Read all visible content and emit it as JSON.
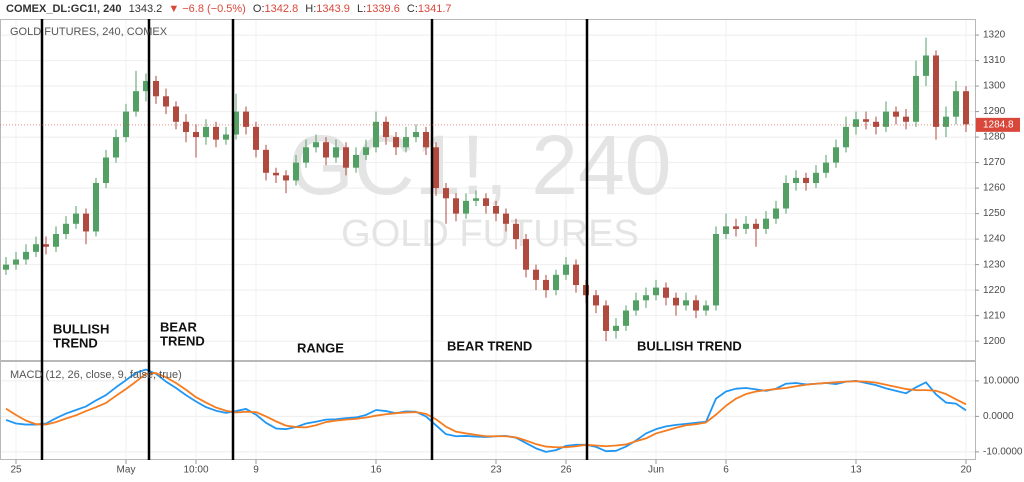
{
  "header": {
    "symbol": "COMEX_DL:GC1!, 240",
    "last": "1343.2",
    "change": "▼ −6.8 (−0.5%)",
    "ohlc": [
      {
        "label": "O:",
        "value": "1342.8"
      },
      {
        "label": "H:",
        "value": "1343.9"
      },
      {
        "label": "L:",
        "value": "1339.6"
      },
      {
        "label": "C:",
        "value": "1341.7"
      }
    ]
  },
  "watermark": {
    "big": "GC1!, 240",
    "small": "GOLD FUTURES"
  },
  "chart_data": [
    {
      "type": "candlestick",
      "title": "GOLD FUTURES, 240, COMEX",
      "up_color": "#53a065",
      "down_color": "#b04a3f",
      "open": [
        1228,
        1230,
        1232,
        1235,
        1238,
        1237,
        1242,
        1246,
        1250,
        1243,
        1262,
        1272,
        1280,
        1290,
        1298,
        1302,
        1296,
        1292,
        1286,
        1282,
        1280,
        1284,
        1279,
        1281,
        1290,
        1284,
        1275,
        1266,
        1265,
        1263,
        1270,
        1276,
        1278,
        1272,
        1276,
        1268,
        1273,
        1276,
        1286,
        1280,
        1276,
        1280,
        1282,
        1276,
        1260,
        1256,
        1250,
        1255,
        1256,
        1253,
        1250,
        1246,
        1240,
        1228,
        1224,
        1220,
        1226,
        1230,
        1222,
        1218,
        1214,
        1204,
        1206,
        1212,
        1216,
        1218,
        1221,
        1217,
        1214,
        1216,
        1212,
        1214,
        1242,
        1245,
        1244,
        1246,
        1244,
        1248,
        1252,
        1262,
        1264,
        1262,
        1266,
        1270,
        1276,
        1284,
        1287,
        1286,
        1284,
        1290,
        1288,
        1286,
        1304,
        1312,
        1284,
        1288,
        1298
      ],
      "high": [
        1233,
        1235,
        1238,
        1241,
        1241,
        1245,
        1249,
        1253,
        1252,
        1264,
        1275,
        1283,
        1293,
        1306,
        1305,
        1304,
        1299,
        1294,
        1289,
        1285,
        1287,
        1286,
        1284,
        1297,
        1292,
        1286,
        1277,
        1268,
        1267,
        1273,
        1279,
        1281,
        1280,
        1279,
        1278,
        1276,
        1279,
        1290,
        1288,
        1282,
        1284,
        1285,
        1284,
        1278,
        1262,
        1258,
        1258,
        1259,
        1258,
        1255,
        1252,
        1248,
        1242,
        1230,
        1226,
        1228,
        1233,
        1232,
        1224,
        1220,
        1216,
        1209,
        1214,
        1219,
        1221,
        1224,
        1223,
        1219,
        1219,
        1218,
        1216,
        1245,
        1250,
        1248,
        1249,
        1248,
        1251,
        1255,
        1265,
        1267,
        1266,
        1269,
        1273,
        1279,
        1288,
        1290,
        1290,
        1288,
        1294,
        1292,
        1291,
        1310,
        1319,
        1314,
        1292,
        1302,
        1300
      ],
      "low": [
        1226,
        1228,
        1230,
        1233,
        1234,
        1235,
        1240,
        1244,
        1238,
        1241,
        1260,
        1270,
        1278,
        1288,
        1294,
        1293,
        1289,
        1283,
        1278,
        1272,
        1277,
        1276,
        1277,
        1279,
        1281,
        1272,
        1263,
        1262,
        1258,
        1261,
        1268,
        1274,
        1269,
        1270,
        1265,
        1266,
        1271,
        1274,
        1277,
        1273,
        1274,
        1278,
        1273,
        1257,
        1246,
        1247,
        1248,
        1253,
        1250,
        1247,
        1243,
        1236,
        1225,
        1220,
        1217,
        1218,
        1224,
        1219,
        1215,
        1211,
        1200,
        1201,
        1204,
        1210,
        1213,
        1216,
        1214,
        1210,
        1212,
        1209,
        1210,
        1212,
        1240,
        1241,
        1242,
        1237,
        1242,
        1246,
        1250,
        1259,
        1259,
        1260,
        1264,
        1268,
        1274,
        1281,
        1283,
        1281,
        1282,
        1285,
        1283,
        1284,
        1300,
        1279,
        1280,
        1285,
        1282
      ],
      "close": [
        1230,
        1232,
        1235,
        1238,
        1237,
        1242,
        1246,
        1250,
        1243,
        1262,
        1272,
        1280,
        1290,
        1298,
        1302,
        1296,
        1292,
        1286,
        1282,
        1280,
        1284,
        1279,
        1281,
        1290,
        1284,
        1275,
        1266,
        1265,
        1263,
        1270,
        1276,
        1278,
        1272,
        1276,
        1268,
        1273,
        1276,
        1286,
        1280,
        1276,
        1280,
        1282,
        1276,
        1260,
        1256,
        1250,
        1255,
        1256,
        1253,
        1250,
        1246,
        1240,
        1228,
        1224,
        1220,
        1226,
        1230,
        1222,
        1218,
        1214,
        1204,
        1206,
        1212,
        1216,
        1218,
        1221,
        1217,
        1214,
        1216,
        1212,
        1214,
        1242,
        1245,
        1244,
        1246,
        1244,
        1248,
        1252,
        1262,
        1264,
        1262,
        1266,
        1270,
        1276,
        1284,
        1287,
        1286,
        1284,
        1290,
        1288,
        1286,
        1304,
        1312,
        1284,
        1288,
        1298,
        1285
      ],
      "last_price": 1284.8,
      "last_price_color": "#d9473a",
      "ylim": [
        1192.6,
        1326.3
      ],
      "yticks": [
        1200,
        1210,
        1220,
        1230,
        1240,
        1250,
        1260,
        1270,
        1280,
        1290,
        1300,
        1310,
        1320
      ],
      "grid": true,
      "annotations": [
        {
          "lines": [
            "BULLISH",
            "TREND"
          ]
        },
        {
          "lines": [
            "BEAR",
            "TREND"
          ]
        },
        {
          "lines": [
            "RANGE"
          ]
        },
        {
          "lines": [
            "BEAR TREND"
          ]
        },
        {
          "lines": [
            "BULLISH TREND"
          ]
        }
      ]
    },
    {
      "type": "line",
      "title": "MACD (12, 26, close, 9, false, true)",
      "categories": [
        null,
        "25",
        null,
        null,
        null,
        null,
        null,
        null,
        null,
        null,
        null,
        null,
        "May",
        null,
        null,
        null,
        null,
        null,
        null,
        "10:00",
        null,
        null,
        null,
        null,
        null,
        "9",
        null,
        null,
        null,
        null,
        null,
        null,
        null,
        null,
        null,
        null,
        null,
        "16",
        null,
        null,
        null,
        null,
        null,
        null,
        null,
        null,
        null,
        null,
        null,
        "23",
        null,
        null,
        null,
        null,
        null,
        null,
        "26",
        null,
        null,
        null,
        null,
        null,
        null,
        null,
        null,
        "Jun",
        null,
        null,
        null,
        null,
        null,
        null,
        "6",
        null,
        null,
        null,
        null,
        null,
        null,
        null,
        null,
        null,
        null,
        null,
        null,
        "13",
        null,
        null,
        null,
        null,
        null,
        null,
        null,
        null,
        null,
        null,
        "20"
      ],
      "series": [
        {
          "name": "MACD",
          "color": "#2196f3",
          "values": [
            -1.0,
            -2.0,
            -2.3,
            -2.3,
            -2.0,
            -0.5,
            0.8,
            1.8,
            2.8,
            4.5,
            6.0,
            8.2,
            10.2,
            12.3,
            13.2,
            12.0,
            9.8,
            8.0,
            6.0,
            4.2,
            2.6,
            1.6,
            1.0,
            1.5,
            2.1,
            0.5,
            -1.8,
            -3.4,
            -3.6,
            -3.0,
            -2.0,
            -1.5,
            -0.9,
            -0.8,
            -0.5,
            -0.3,
            0.4,
            1.8,
            1.5,
            0.9,
            1.4,
            1.3,
            0.0,
            -2.5,
            -5.0,
            -5.6,
            -5.5,
            -5.7,
            -5.8,
            -5.6,
            -5.5,
            -6.0,
            -7.5,
            -9.0,
            -10.0,
            -9.5,
            -8.3,
            -8.0,
            -8.0,
            -8.6,
            -9.8,
            -9.7,
            -8.5,
            -6.8,
            -4.8,
            -3.6,
            -2.8,
            -2.4,
            -2.1,
            -1.8,
            -1.5,
            5.0,
            7.0,
            7.8,
            8.0,
            7.6,
            7.2,
            7.8,
            9.2,
            9.4,
            9.0,
            9.2,
            9.4,
            9.1,
            9.8,
            10.0,
            9.4,
            8.8,
            7.9,
            7.2,
            6.5,
            8.2,
            9.6,
            6.2,
            3.9,
            3.6,
            1.7
          ]
        },
        {
          "name": "Signal",
          "color": "#f57c20",
          "values": [
            2.2,
            0.4,
            -1.2,
            -2.2,
            -2.3,
            -1.6,
            -0.6,
            0.3,
            1.5,
            2.6,
            3.8,
            5.8,
            7.7,
            9.8,
            12.0,
            12.2,
            11.0,
            9.4,
            7.5,
            5.4,
            3.9,
            2.5,
            1.6,
            1.1,
            1.3,
            1.2,
            0.0,
            -1.4,
            -2.6,
            -3.0,
            -3.1,
            -2.5,
            -1.6,
            -1.2,
            -0.9,
            -0.7,
            -0.3,
            0.2,
            0.6,
            0.9,
            1.1,
            1.2,
            0.7,
            -0.8,
            -2.9,
            -4.3,
            -4.8,
            -5.2,
            -5.6,
            -5.6,
            -5.6,
            -5.9,
            -6.8,
            -7.8,
            -8.5,
            -8.7,
            -8.7,
            -8.4,
            -8.0,
            -8.2,
            -8.4,
            -8.2,
            -7.9,
            -7.0,
            -6.2,
            -4.8,
            -4.0,
            -3.2,
            -2.5,
            -2.2,
            -1.7,
            0.5,
            3.0,
            5.0,
            6.3,
            7.0,
            7.4,
            7.7,
            8.0,
            8.5,
            8.9,
            9.2,
            9.4,
            9.6,
            9.8,
            9.9,
            9.8,
            9.5,
            8.9,
            8.3,
            7.7,
            7.4,
            7.4,
            7.2,
            6.3,
            4.8,
            3.4
          ]
        }
      ],
      "ylim": [
        -12,
        15.6
      ],
      "yticks": [
        {
          "value": 10,
          "label": "10.0000"
        },
        {
          "value": 0,
          "label": "0.0000"
        },
        {
          "value": -10,
          "label": "-10.0000"
        }
      ],
      "grid": true
    }
  ]
}
